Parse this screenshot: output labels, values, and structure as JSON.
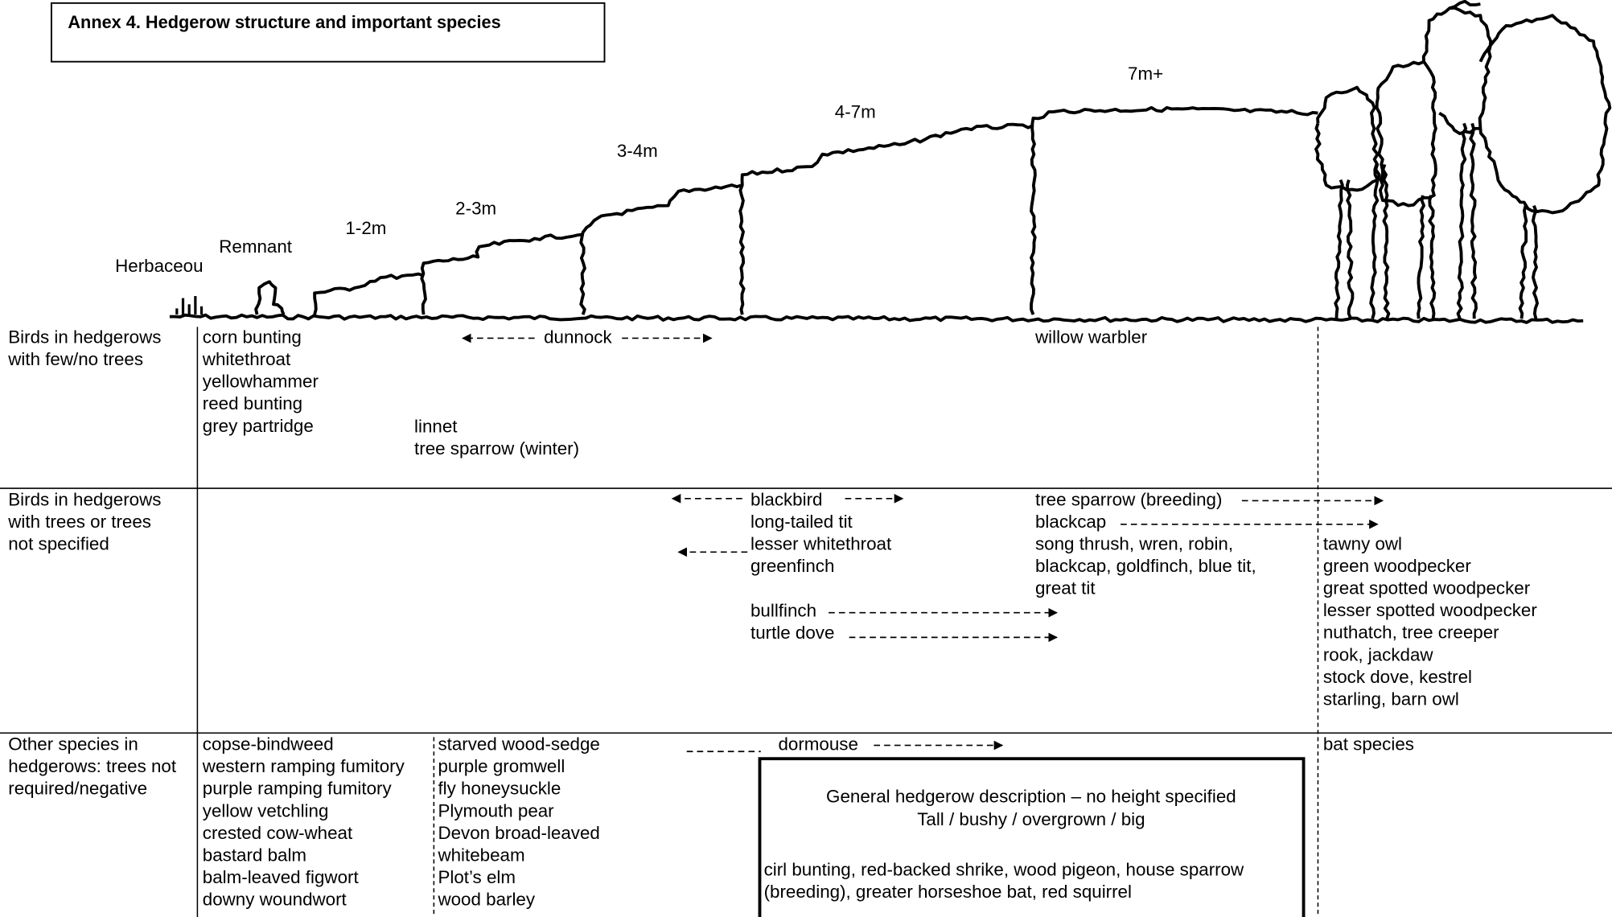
{
  "title": "Annex 4. Hedgerow structure and important species",
  "heights": [
    "Herbaceou",
    "Remnant",
    "1-2m",
    "2-3m",
    "3-4m",
    "4-7m",
    "7m+"
  ],
  "rows": [
    {
      "label": [
        "Birds in hedgerows",
        "with few/no trees"
      ],
      "open_field": [
        "corn bunting",
        "whitethroat",
        "yellowhammer",
        "reed bunting",
        "grey partridge"
      ],
      "low_hedge": [
        "linnet",
        "tree sparrow (winter)"
      ],
      "dunnock": "dunnock",
      "tall_hedge": [
        "willow warbler"
      ]
    },
    {
      "label": [
        "Birds in hedgerows",
        "with trees or trees",
        "not specified"
      ],
      "medium_hedge": [
        "blackbird",
        "long-tailed tit",
        "lesser whitethroat",
        "greenfinch"
      ],
      "medium_to_tall": [
        "bullfinch",
        "turtle dove"
      ],
      "tall_hedge": [
        "tree sparrow (breeding)",
        "blackcap",
        "song thrush, wren, robin,",
        "blackcap, goldfinch, blue tit,",
        "great tit"
      ],
      "trees": [
        "tawny owl",
        "green woodpecker",
        "great spotted woodpecker",
        "lesser spotted woodpecker",
        "nuthatch, tree creeper",
        "rook, jackdaw",
        "stock dove, kestrel",
        "starling, barn owl"
      ]
    },
    {
      "label": [
        "Other species in",
        "hedgerows: trees not",
        "required/negative"
      ],
      "col1": [
        "copse-bindweed",
        "western ramping fumitory",
        "purple ramping fumitory",
        "yellow vetchling",
        "crested cow-wheat",
        "bastard balm",
        "balm-leaved figwort",
        "downy woundwort"
      ],
      "col2": [
        "starved wood-sedge",
        "purple gromwell",
        "fly honeysuckle",
        "Plymouth pear",
        "Devon broad-leaved",
        "whitebeam",
        "Plot’s elm",
        "wood barley"
      ],
      "dormouse": "dormouse",
      "trees": [
        "bat species"
      ],
      "box": {
        "heading": [
          "General hedgerow description – no height specified",
          "Tall / bushy / overgrown / big"
        ],
        "species": [
          "cirl bunting, red-backed shrike, wood pigeon, house sparrow",
          "(breeding), greater horseshoe bat, red squirrel"
        ]
      }
    }
  ]
}
